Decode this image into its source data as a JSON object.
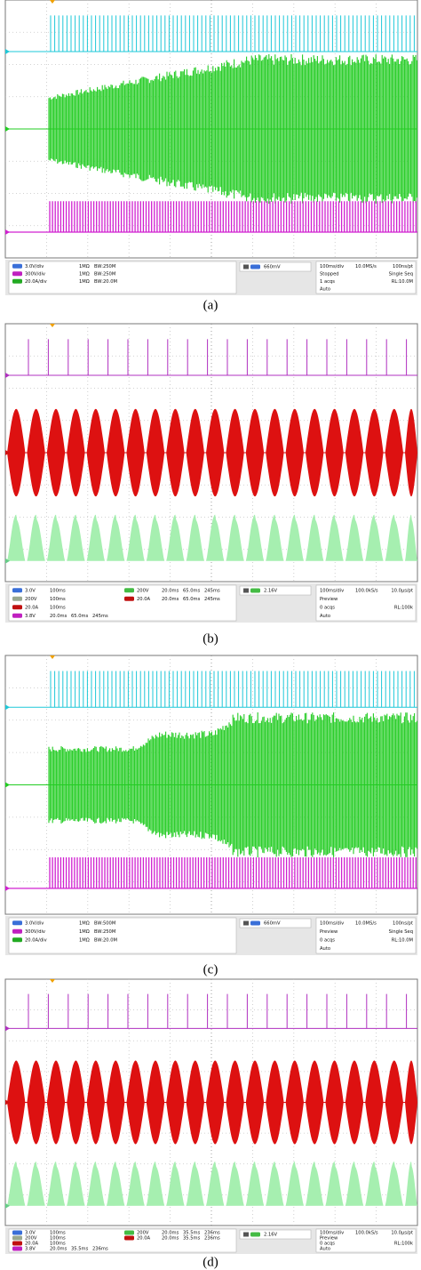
{
  "panels": [
    {
      "caption": "(a)",
      "channels": [
        [
          "3.0V/div",
          "1MΩ",
          "BW:250M"
        ],
        [
          "300V/div",
          "1MΩ",
          "BW:250M"
        ],
        [
          "20.0A/div",
          "1MΩ",
          "BW:20.0M"
        ]
      ],
      "math": [],
      "trigger": "660mV",
      "timebase": [
        [
          "100ms/div",
          "10.0MS/s",
          "100ns/pt"
        ],
        [
          "Stopped",
          "Single Seq"
        ],
        [
          "1 acqs",
          "RL:10.0M"
        ],
        [
          "Auto"
        ]
      ]
    },
    {
      "caption": "(b)",
      "channels": [
        [
          "3.0V",
          "100ms"
        ],
        [
          "200V",
          "100ms"
        ],
        [
          "20.0A",
          "100ms"
        ],
        [
          "3.8V",
          "20.0ms",
          "65.0ms",
          "245ms"
        ]
      ],
      "math": [
        [
          "200V",
          "20.0ms",
          "65.0ms",
          "245ms"
        ],
        [
          "20.0A",
          "20.0ms",
          "65.0ms",
          "245ms"
        ]
      ],
      "trigger": "2.16V",
      "timebase": [
        [
          "100ms/div",
          "100.0kS/s",
          "10.0µs/pt"
        ],
        [
          "Preview"
        ],
        [
          "0 acqs",
          "RL:100k"
        ],
        [
          "Auto"
        ]
      ]
    },
    {
      "caption": "(c)",
      "channels": [
        [
          "3.0V/div",
          "1MΩ",
          "BW:500M"
        ],
        [
          "300V/div",
          "1MΩ",
          "BW:250M"
        ],
        [
          "20.0A/div",
          "1MΩ",
          "BW:20.0M"
        ]
      ],
      "math": [],
      "trigger": "660mV",
      "timebase": [
        [
          "100ms/div",
          "10.0MS/s",
          "100ns/pt"
        ],
        [
          "Preview",
          "Single Seq"
        ],
        [
          "0 acqs",
          "RL:10.0M"
        ],
        [
          "Auto"
        ]
      ]
    },
    {
      "caption": "(d)",
      "channels": [
        [
          "3.0V",
          "100ms"
        ],
        [
          "200V",
          "100ms"
        ],
        [
          "20.0A",
          "100ms"
        ],
        [
          "3.8V",
          "20.0ms",
          "35.5ms",
          "236ms"
        ]
      ],
      "math": [
        [
          "200V",
          "20.0ms",
          "35.5ms",
          "236ms"
        ],
        [
          "20.0A",
          "20.0ms",
          "35.5ms",
          "236ms"
        ]
      ],
      "trigger": "2.16V",
      "timebase": [
        [
          "100ms/div",
          "100.0kS/s",
          "10.0µs/pt"
        ],
        [
          "Preview"
        ],
        [
          "0 acqs",
          "RL:100k"
        ],
        [
          "Auto"
        ]
      ]
    }
  ]
}
